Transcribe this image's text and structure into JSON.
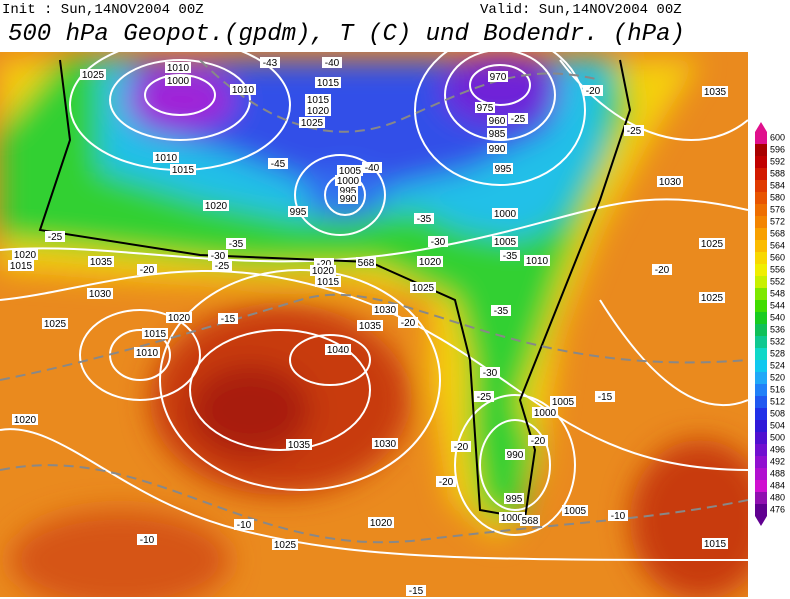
{
  "header": {
    "init": "Init : Sun,14NOV2004 00Z",
    "valid": "Valid: Sun,14NOV2004 00Z",
    "title": "500 hPa Geopot.(gpdm), T (C) und Bodendr. (hPa)"
  },
  "colorbar": {
    "ticks": [
      600,
      596,
      592,
      588,
      584,
      580,
      576,
      572,
      568,
      564,
      560,
      556,
      552,
      548,
      544,
      540,
      536,
      532,
      528,
      524,
      520,
      516,
      512,
      508,
      504,
      500,
      496,
      492,
      488,
      484,
      480,
      476
    ],
    "colors": [
      "#e0108c",
      "#a80000",
      "#c00000",
      "#d21a00",
      "#e03a00",
      "#e85400",
      "#ee6e00",
      "#f38400",
      "#f8a000",
      "#fbbc00",
      "#f8d800",
      "#f0ee00",
      "#c8f000",
      "#7ee800",
      "#40dc00",
      "#18cc20",
      "#10c058",
      "#10c890",
      "#10d8c8",
      "#10c8f0",
      "#20a8f8",
      "#2080f8",
      "#2058f0",
      "#2030e8",
      "#3018d8",
      "#5010d0",
      "#7010d0",
      "#9010d0",
      "#b010d0",
      "#d010d0",
      "#9010b0",
      "#600090"
    ]
  },
  "map_labels": [
    "1025",
    "1010",
    "1000",
    "-43",
    "-40",
    "1010",
    "1015",
    "1015",
    "1020",
    "1025",
    "970",
    "975",
    "960",
    "985",
    "990",
    "995",
    "-25",
    "-20",
    "-25",
    "1035",
    "1010",
    "1015",
    "-45",
    "1005",
    "1000",
    "995",
    "990",
    "-40",
    "1020",
    "995",
    "-35",
    "1000",
    "1030",
    "-25",
    "1020",
    "1015",
    "1035",
    "-20",
    "-30",
    "-25",
    "-35",
    "-30",
    "1005",
    "-35",
    "1010",
    "1020",
    "-20",
    "568",
    "1020",
    "1015",
    "1025",
    "1025",
    "-20",
    "1025",
    "1030",
    "1030",
    "-20",
    "1035",
    "-15",
    "1020",
    "1015",
    "1025",
    "1010",
    "1040",
    "-35",
    "-30",
    "-25",
    "1005",
    "1000",
    "-15",
    "1020",
    "1035",
    "1030",
    "-20",
    "990",
    "-20",
    "-20",
    "995",
    "1000",
    "568",
    "1005",
    "-10",
    "-10",
    "-10",
    "1025",
    "1020",
    "1015",
    "-15"
  ]
}
